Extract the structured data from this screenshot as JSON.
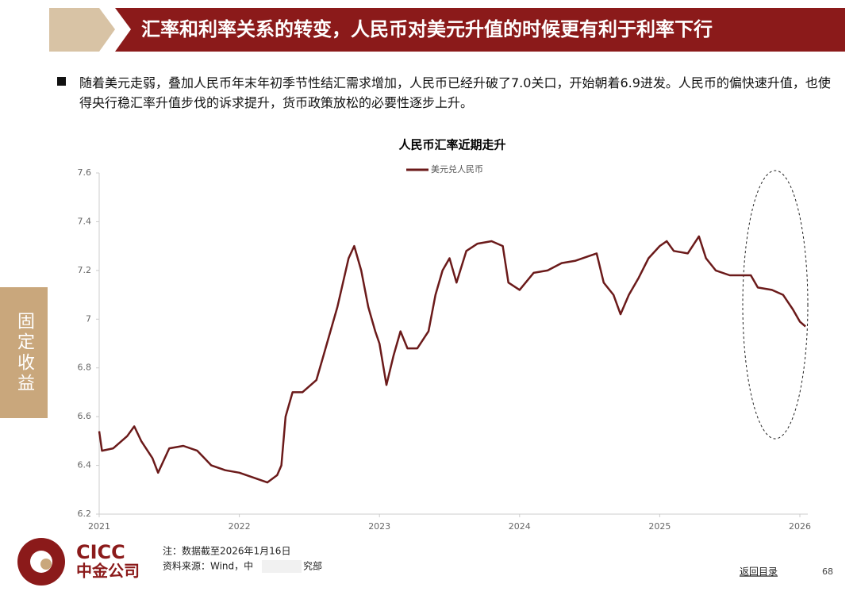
{
  "header": {
    "title": "汇率和利率关系的转变，人民币对美元升值的时候更有利于利率下行"
  },
  "sidebar": {
    "label": "固定收益"
  },
  "bullet": "随着美元走弱，叠加人民币年末年初季节性结汇需求增加，人民币已经升破了7.0关口，开始朝着6.9进发。人民币的偏快速升值，也使得央行稳汇率升值步伐的诉求提升，货币政策放松的必要性逐步上升。",
  "chart_data": {
    "type": "line",
    "title": "人民币汇率近期走升",
    "x": [
      2021.0,
      2021.02,
      2021.1,
      2021.2,
      2021.25,
      2021.3,
      2021.38,
      2021.42,
      2021.5,
      2021.6,
      2021.7,
      2021.8,
      2021.9,
      2022.0,
      2022.1,
      2022.2,
      2022.27,
      2022.3,
      2022.33,
      2022.38,
      2022.45,
      2022.55,
      2022.6,
      2022.7,
      2022.78,
      2022.82,
      2022.87,
      2022.92,
      2022.97,
      2023.0,
      2023.05,
      2023.1,
      2023.15,
      2023.2,
      2023.27,
      2023.35,
      2023.4,
      2023.45,
      2023.5,
      2023.55,
      2023.62,
      2023.7,
      2023.8,
      2023.88,
      2023.92,
      2024.0,
      2024.1,
      2024.2,
      2024.3,
      2024.4,
      2024.5,
      2024.55,
      2024.6,
      2024.67,
      2024.72,
      2024.78,
      2024.85,
      2024.92,
      2025.0,
      2025.05,
      2025.1,
      2025.2,
      2025.28,
      2025.33,
      2025.4,
      2025.5,
      2025.6,
      2025.65,
      2025.7,
      2025.8,
      2025.88,
      2025.95,
      2026.0,
      2026.04
    ],
    "series": [
      {
        "name": "美元兑人民币",
        "color": "#6b1a1a",
        "values": [
          6.54,
          6.46,
          6.47,
          6.52,
          6.56,
          6.5,
          6.43,
          6.37,
          6.47,
          6.48,
          6.46,
          6.4,
          6.38,
          6.37,
          6.35,
          6.33,
          6.36,
          6.4,
          6.6,
          6.7,
          6.7,
          6.75,
          6.85,
          7.05,
          7.25,
          7.3,
          7.2,
          7.05,
          6.95,
          6.9,
          6.73,
          6.85,
          6.95,
          6.88,
          6.88,
          6.95,
          7.1,
          7.2,
          7.25,
          7.15,
          7.28,
          7.31,
          7.32,
          7.3,
          7.15,
          7.12,
          7.19,
          7.2,
          7.23,
          7.24,
          7.26,
          7.27,
          7.15,
          7.1,
          7.02,
          7.1,
          7.17,
          7.25,
          7.3,
          7.32,
          7.28,
          7.27,
          7.34,
          7.25,
          7.2,
          7.18,
          7.18,
          7.18,
          7.13,
          7.12,
          7.1,
          7.04,
          6.99,
          6.97
        ]
      }
    ],
    "xlim": [
      2021,
      2026
    ],
    "xticks": [
      2021,
      2022,
      2023,
      2024,
      2025,
      2026
    ],
    "ylim": [
      6.2,
      7.6
    ],
    "yticks": [
      6.2,
      6.4,
      6.6,
      6.8,
      7,
      7.2,
      7.4,
      7.6
    ]
  },
  "footer": {
    "note": "注：数据截至2026年1月16日",
    "source": [
      "资料来源：Wind，中",
      "究部"
    ],
    "back": "返回目录",
    "page": "68",
    "logo": {
      "en": "CICC",
      "cn": "中金公司"
    }
  }
}
